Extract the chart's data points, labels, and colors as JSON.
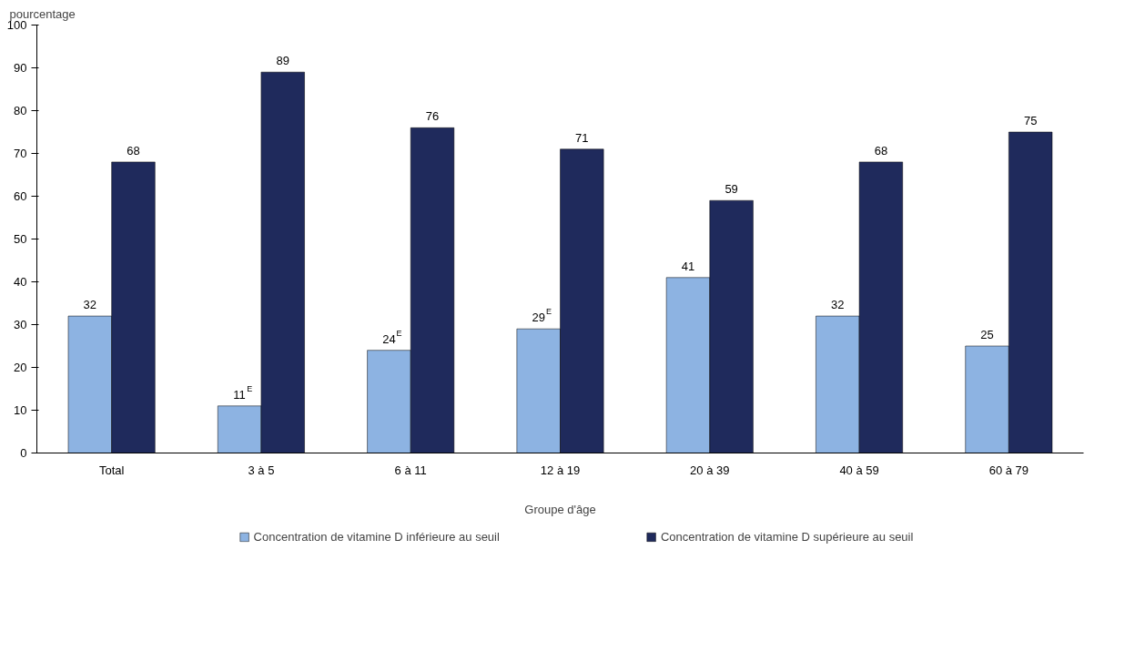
{
  "chart_data": {
    "type": "bar",
    "ylabel": "pourcentage",
    "xlabel": "Groupe d'âge",
    "categories": [
      "Total",
      "3 à 5",
      "6 à 11",
      "12 à 19",
      "20 à 39",
      "40 à 59",
      "60 à 79"
    ],
    "series": [
      {
        "name": "Concentration de vitamine D inférieure au seuil",
        "color": "#8db3e2",
        "values": [
          32,
          11,
          24,
          29,
          41,
          32,
          25
        ],
        "value_labels": [
          "32",
          "11$^{E}$",
          "24$^{E}$",
          "29$^{E}$",
          "41",
          "32",
          "25"
        ]
      },
      {
        "name": "Concentration de vitamine D supérieure au seuil",
        "color": "#1f2a5c",
        "values": [
          68,
          89,
          76,
          71,
          59,
          68,
          75
        ],
        "value_labels": [
          "68",
          "89",
          "76",
          "71",
          "59",
          "68",
          "75"
        ]
      }
    ],
    "ylim": [
      0,
      100
    ],
    "yticks": [
      0,
      10,
      20,
      30,
      40,
      50,
      60,
      70,
      80,
      90,
      100
    ],
    "grid": false,
    "legend": "bottom"
  }
}
